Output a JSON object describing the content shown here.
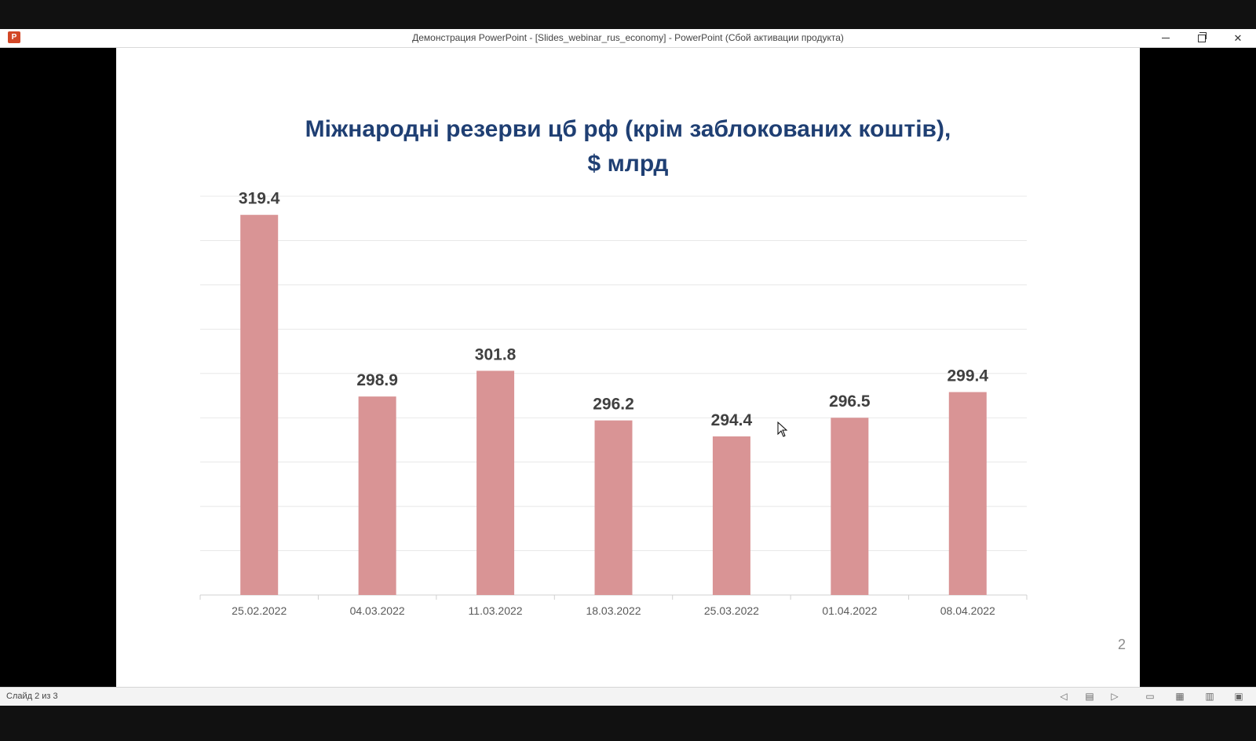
{
  "window": {
    "title": "Демонстрация PowerPoint - [Slides_webinar_rus_economy] - PowerPoint (Сбой активации продукта)",
    "app_icon": "powerpoint-icon",
    "app_icon_letter": "P"
  },
  "slide": {
    "title_line1": "Міжнародні резерви цб рф (крім заблокованих коштів),",
    "title_line2": "$ млрд",
    "number": "2"
  },
  "chart_data": {
    "type": "bar",
    "categories": [
      "25.02.2022",
      "04.03.2022",
      "11.03.2022",
      "18.03.2022",
      "25.03.2022",
      "01.04.2022",
      "08.04.2022"
    ],
    "values": [
      319.4,
      298.9,
      301.8,
      296.2,
      294.4,
      296.5,
      299.4
    ],
    "data_labels": [
      "319.4",
      "298.9",
      "301.8",
      "296.2",
      "294.4",
      "296.5",
      "299.4"
    ],
    "ylim": [
      276.5,
      321.5
    ],
    "grid": true,
    "bar_color": "#d99495",
    "title": "Міжнародні резерви цб рф (крім заблокованих коштів), $ млрд",
    "xlabel": "",
    "ylabel": ""
  },
  "statusbar": {
    "slide_info": "Слайд 2 из 3"
  }
}
